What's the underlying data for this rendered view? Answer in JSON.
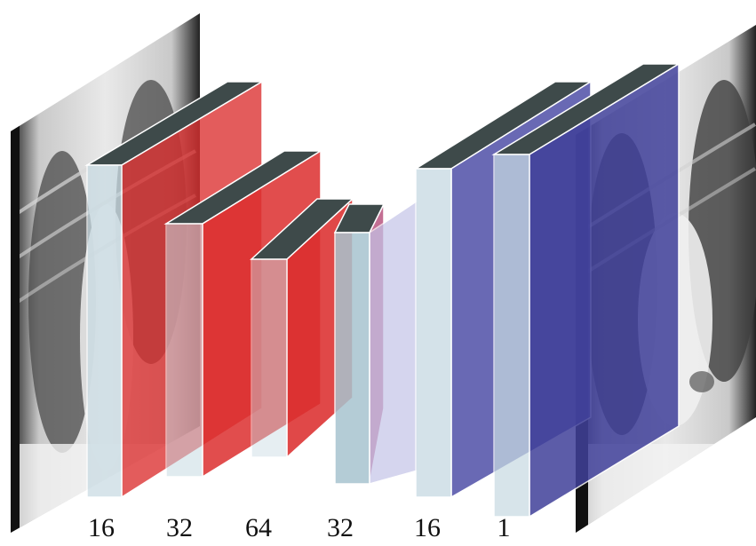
{
  "diagram": {
    "channel_labels": [
      "16",
      "32",
      "64",
      "32",
      "16",
      "1"
    ],
    "colors": {
      "encoder": "#dc2f2f",
      "decoder": "#5050a8",
      "top_face": "#3e4a4a",
      "side_face": "#c8dbe3",
      "outline": "#ffffff"
    },
    "input_image": "chest-xray",
    "output_image": "chest-xray"
  }
}
